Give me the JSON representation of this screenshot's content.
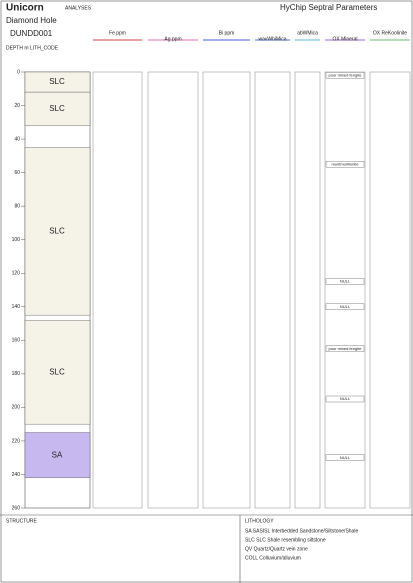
{
  "chart_data": {
    "type": "strip-log",
    "title": "Unicorn",
    "subtitle": "Diamond Hole",
    "hole_id": "DUNDD001",
    "depth_label": "DEPTH m",
    "lith_label": "LITH_CODE",
    "analyses_label": "ANALYSES",
    "hychip_label": "HyChip Septral Parameters",
    "track_labels": [
      "Fe ppm",
      "Ag ppm",
      "Bi ppm",
      "wavWhiMica",
      "abWMica",
      "OX Mineral",
      "OX ReKoolinite"
    ],
    "ylim": [
      0,
      260
    ],
    "yticks": [
      0,
      20,
      40,
      60,
      80,
      100,
      120,
      140,
      160,
      180,
      200,
      220,
      240,
      260
    ],
    "lithology": [
      {
        "code": "SLC",
        "from": 0,
        "to": 12
      },
      {
        "code": "SLC",
        "from": 12,
        "to": 32
      },
      {
        "code": "SLC",
        "from": 45,
        "to": 145
      },
      {
        "code": "SLC",
        "from": 148,
        "to": 210
      },
      {
        "code": "SA",
        "from": 215,
        "to": 242
      }
    ],
    "minerals": [
      {
        "label": "poor mixed fengite",
        "depth": 2
      },
      {
        "label": "montmorillonite",
        "depth": 55
      },
      {
        "label": "NULL",
        "depth": 125
      },
      {
        "label": "NULL",
        "depth": 140
      },
      {
        "label": "poor mixed fengite",
        "depth": 165
      },
      {
        "label": "NULL",
        "depth": 195
      },
      {
        "label": "NULL",
        "depth": 230
      }
    ],
    "structure_label": "STRUCTURE",
    "lithology_label": "LITHOLOGY",
    "lithology_legend": [
      "SA SASISL   Interbedded Sandstone/Siltstone/Shale",
      "SLC SLC  Shale resembling siltstone",
      "QV Quartz/Quartz vein zone",
      "COLL Colluvium/alluvium"
    ]
  }
}
